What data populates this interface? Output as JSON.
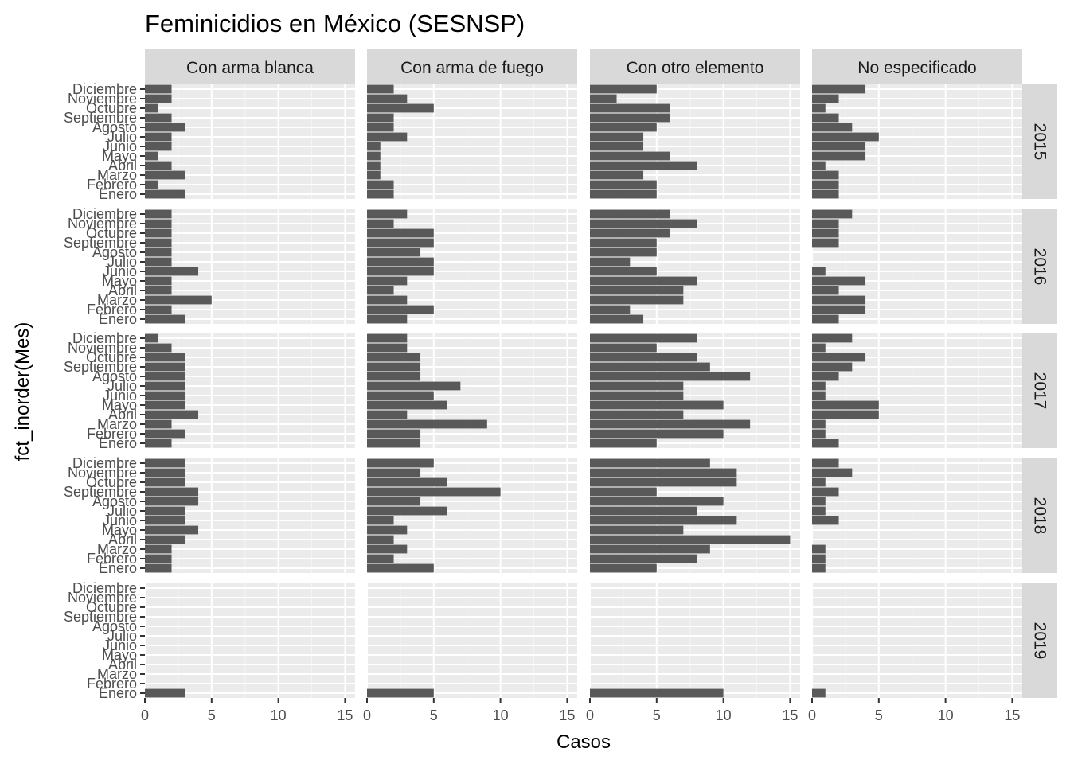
{
  "chart_data": {
    "type": "bar",
    "orientation": "horizontal",
    "title": "Feminicidios en México (SESNSP)",
    "xlabel": "Casos",
    "ylabel": "fct_inorder(Mes)",
    "xlim": [
      0,
      15.75
    ],
    "x_ticks": [
      0,
      5,
      10,
      15
    ],
    "grid": true,
    "categories": [
      "Enero",
      "Febrero",
      "Marzo",
      "Abril",
      "Mayo",
      "Junio",
      "Julio",
      "Agosto",
      "Septiembre",
      "Octubre",
      "Noviembre",
      "Diciembre"
    ],
    "facet_cols": [
      "Con arma blanca",
      "Con arma de fuego",
      "Con otro elemento",
      "No especificado"
    ],
    "facet_rows": [
      "2015",
      "2016",
      "2017",
      "2018",
      "2019"
    ],
    "bar_color": "#595959",
    "panel_background": "#ebebeb",
    "strip_background": "#d9d9d9",
    "values": {
      "Con arma blanca": {
        "2015": [
          3,
          1,
          3,
          2,
          1,
          2,
          2,
          3,
          2,
          1,
          2,
          2
        ],
        "2016": [
          3,
          2,
          5,
          2,
          2,
          4,
          2,
          2,
          2,
          2,
          2,
          2
        ],
        "2017": [
          2,
          3,
          2,
          4,
          3,
          3,
          3,
          3,
          3,
          3,
          2,
          1
        ],
        "2018": [
          2,
          2,
          2,
          3,
          4,
          3,
          3,
          4,
          4,
          3,
          3,
          3
        ],
        "2019": [
          3,
          0,
          0,
          0,
          0,
          0,
          0,
          0,
          0,
          0,
          0,
          0
        ]
      },
      "Con arma de fuego": {
        "2015": [
          2,
          2,
          1,
          1,
          1,
          1,
          3,
          2,
          2,
          5,
          3,
          2
        ],
        "2016": [
          3,
          5,
          3,
          2,
          3,
          5,
          5,
          4,
          5,
          5,
          2,
          3
        ],
        "2017": [
          4,
          4,
          9,
          3,
          6,
          5,
          7,
          4,
          4,
          4,
          3,
          3
        ],
        "2018": [
          5,
          2,
          3,
          2,
          3,
          2,
          6,
          4,
          10,
          6,
          4,
          5
        ],
        "2019": [
          5,
          0,
          0,
          0,
          0,
          0,
          0,
          0,
          0,
          0,
          0,
          0
        ]
      },
      "Con otro elemento": {
        "2015": [
          5,
          5,
          4,
          8,
          6,
          4,
          4,
          5,
          6,
          6,
          2,
          5
        ],
        "2016": [
          4,
          3,
          7,
          7,
          8,
          5,
          3,
          5,
          5,
          6,
          8,
          6
        ],
        "2017": [
          5,
          10,
          12,
          7,
          10,
          7,
          7,
          12,
          9,
          8,
          5,
          8
        ],
        "2018": [
          5,
          8,
          9,
          15,
          7,
          11,
          8,
          10,
          5,
          11,
          11,
          9
        ],
        "2019": [
          10,
          0,
          0,
          0,
          0,
          0,
          0,
          0,
          0,
          0,
          0,
          0
        ]
      },
      "No especificado": {
        "2015": [
          2,
          2,
          2,
          1,
          4,
          4,
          5,
          3,
          2,
          1,
          2,
          4
        ],
        "2016": [
          2,
          4,
          4,
          2,
          4,
          1,
          0,
          0,
          2,
          2,
          2,
          3
        ],
        "2017": [
          2,
          1,
          1,
          5,
          5,
          1,
          1,
          2,
          3,
          4,
          1,
          3
        ],
        "2018": [
          1,
          1,
          1,
          0,
          0,
          2,
          1,
          1,
          2,
          1,
          3,
          2
        ],
        "2019": [
          1,
          0,
          0,
          0,
          0,
          0,
          0,
          0,
          0,
          0,
          0,
          0
        ]
      }
    }
  }
}
